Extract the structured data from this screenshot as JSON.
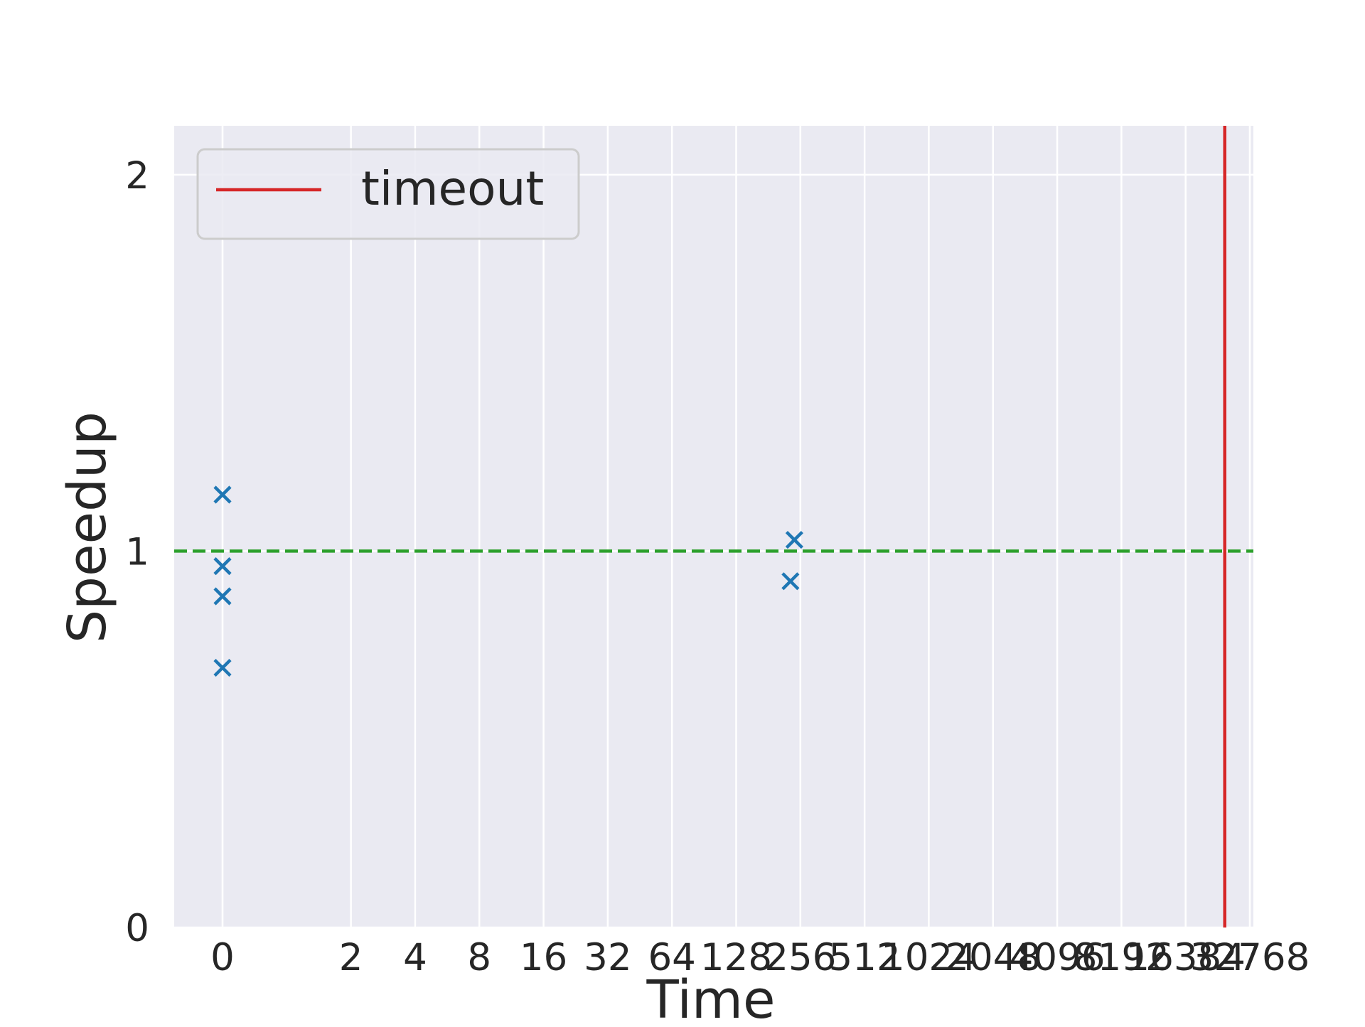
{
  "chart_data": {
    "type": "scatter",
    "xlabel": "Time",
    "ylabel": "Speedup",
    "x_scale": "symlog-base2",
    "xticks": [
      {
        "value": 0,
        "label": "0"
      },
      {
        "value": 2,
        "label": "2"
      },
      {
        "value": 4,
        "label": "4"
      },
      {
        "value": 8,
        "label": "8"
      },
      {
        "value": 16,
        "label": "16"
      },
      {
        "value": 32,
        "label": "32"
      },
      {
        "value": 64,
        "label": "64"
      },
      {
        "value": 128,
        "label": "128"
      },
      {
        "value": 256,
        "label": "256"
      },
      {
        "value": 512,
        "label": "512"
      },
      {
        "value": 1024,
        "label": "1024"
      },
      {
        "value": 2048,
        "label": "2048"
      },
      {
        "value": 4096,
        "label": "4096"
      },
      {
        "value": 8192,
        "label": "8192"
      },
      {
        "value": 16384,
        "label": "16384"
      },
      {
        "value": 32768,
        "label": "32768"
      }
    ],
    "yticks": [
      {
        "value": 0,
        "label": "0"
      },
      {
        "value": 1,
        "label": "1"
      },
      {
        "value": 2,
        "label": "2"
      }
    ],
    "ylim": [
      0,
      2.13
    ],
    "grid": true,
    "legend": {
      "placement": "top-left",
      "entries": [
        {
          "label": "timeout",
          "color": "#d62728"
        }
      ]
    },
    "series": [
      {
        "marker": "x",
        "color": "#1f77b4",
        "points": [
          {
            "x": 0,
            "y": 1.15
          },
          {
            "x": 0,
            "y": 0.96
          },
          {
            "x": 0,
            "y": 0.88
          },
          {
            "x": 0,
            "y": 0.69
          },
          {
            "x": 240,
            "y": 1.03
          },
          {
            "x": 230,
            "y": 0.92
          }
        ]
      }
    ],
    "reference_lines": [
      {
        "orientation": "horizontal",
        "value": 1,
        "color": "#2ca02c",
        "style": "dashed"
      },
      {
        "orientation": "vertical",
        "value": 25000,
        "color": "#d62728",
        "style": "solid",
        "label": "timeout"
      }
    ]
  }
}
